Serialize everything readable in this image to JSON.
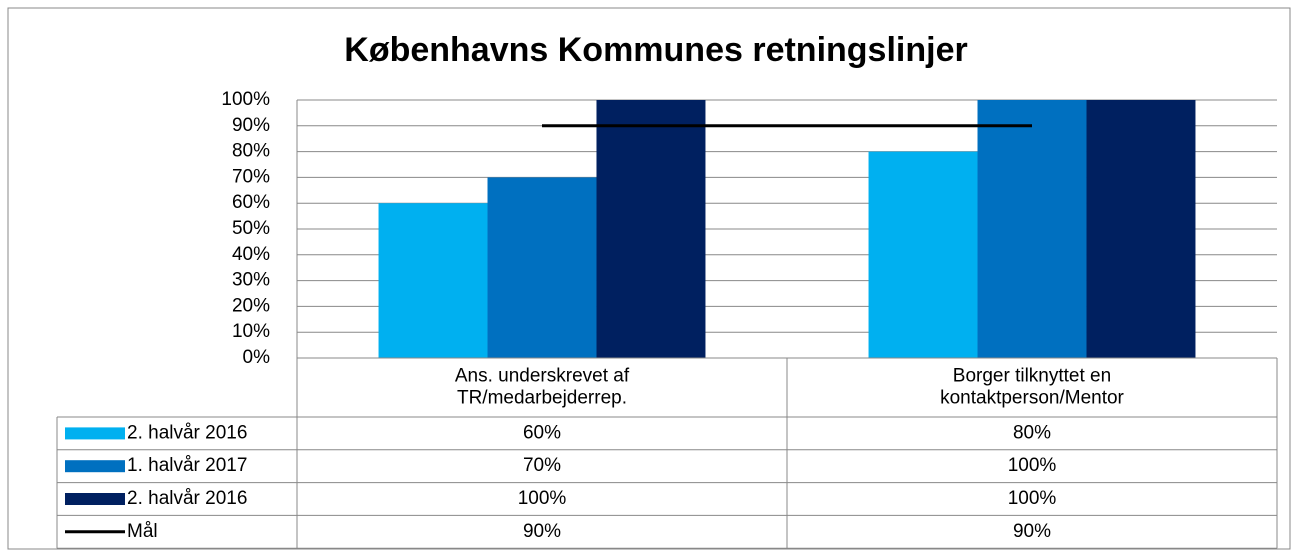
{
  "chart_data": {
    "type": "bar",
    "title": "Københavns Kommunes retningslinjer",
    "categories": [
      "Ans. underskrevet af\nTR/medarbejderrep.",
      "Borger tilknyttet en\nkontaktperson/Mentor"
    ],
    "series": [
      {
        "name": "2. halvår 2016",
        "color": "#00b0f0",
        "values": [
          60,
          80
        ],
        "value_labels": [
          "60%",
          "80%"
        ]
      },
      {
        "name": "1. halvår 2017",
        "color": "#0070c0",
        "values": [
          70,
          100
        ],
        "value_labels": [
          "70%",
          "100%"
        ]
      },
      {
        "name": "2. halvår 2016",
        "color": "#002060",
        "values": [
          100,
          100
        ],
        "value_labels": [
          "100%",
          "100%"
        ]
      },
      {
        "name": "Mål",
        "type": "line",
        "color": "#000000",
        "values": [
          90,
          90
        ],
        "value_labels": [
          "90%",
          "90%"
        ]
      }
    ],
    "ylim": [
      0,
      100
    ],
    "yticks": [
      {
        "value": 0,
        "label": "0%"
      },
      {
        "value": 10,
        "label": "10%"
      },
      {
        "value": 20,
        "label": "20%"
      },
      {
        "value": 30,
        "label": "30%"
      },
      {
        "value": 40,
        "label": "40%"
      },
      {
        "value": 50,
        "label": "50%"
      },
      {
        "value": 60,
        "label": "60%"
      },
      {
        "value": 70,
        "label": "70%"
      },
      {
        "value": 80,
        "label": "80%"
      },
      {
        "value": 90,
        "label": "90%"
      },
      {
        "value": 100,
        "label": "100%"
      }
    ],
    "grid": true,
    "legend": "table"
  }
}
